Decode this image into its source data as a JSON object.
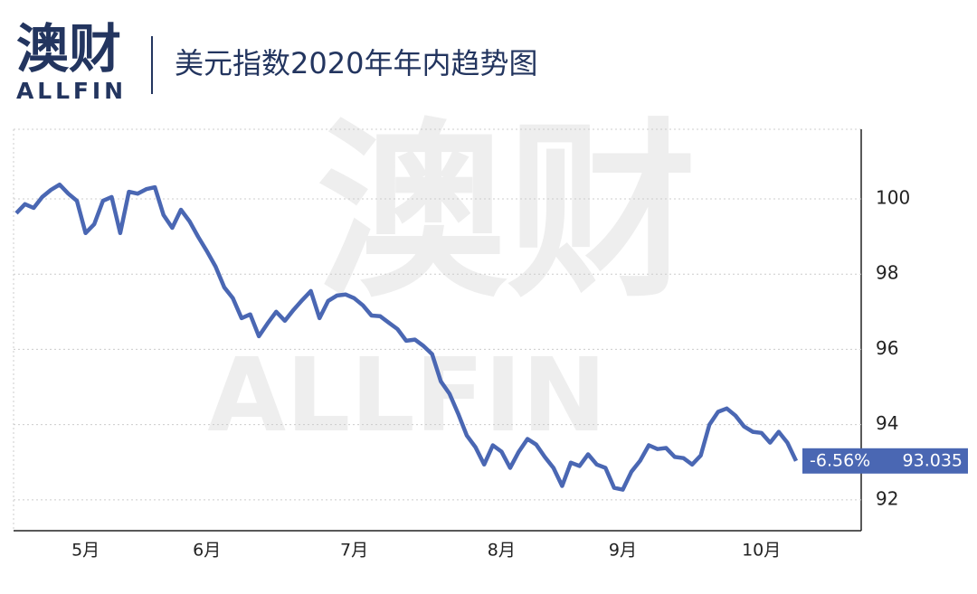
{
  "brand": {
    "name": "澳财",
    "name_en": "ALLFIN"
  },
  "chart_data": {
    "type": "line",
    "title": "美元指数2020年年内趋势图",
    "categories": [
      null,
      null,
      null,
      null,
      null,
      null,
      null,
      null,
      "5月",
      null,
      null,
      null,
      null,
      null,
      null,
      null,
      null,
      null,
      null,
      null,
      null,
      null,
      "6月",
      null,
      null,
      null,
      null,
      null,
      null,
      null,
      null,
      null,
      null,
      null,
      null,
      null,
      null,
      null,
      null,
      "7月",
      null,
      null,
      null,
      null,
      null,
      null,
      null,
      null,
      null,
      null,
      null,
      null,
      null,
      null,
      null,
      null,
      "8月",
      null,
      null,
      null,
      null,
      null,
      null,
      null,
      null,
      null,
      null,
      null,
      null,
      null,
      "9月",
      null,
      null,
      null,
      null,
      null,
      null,
      null,
      null,
      null,
      null,
      null,
      null,
      null,
      null,
      null,
      "10月",
      null,
      null,
      null,
      null
    ],
    "series": [
      {
        "color": "#4a67b3",
        "values": [
          99.62,
          99.86,
          99.76,
          100.05,
          100.24,
          100.38,
          100.14,
          99.95,
          99.09,
          99.33,
          99.95,
          100.05,
          99.09,
          100.19,
          100.14,
          100.26,
          100.31,
          99.57,
          99.23,
          99.71,
          99.4,
          98.99,
          98.61,
          98.2,
          97.65,
          97.36,
          96.83,
          96.93,
          96.35,
          96.69,
          97.0,
          96.76,
          97.05,
          97.31,
          97.55,
          96.83,
          97.29,
          97.43,
          97.46,
          97.36,
          97.17,
          96.9,
          96.88,
          96.71,
          96.54,
          96.23,
          96.26,
          96.09,
          95.87,
          95.15,
          94.82,
          94.29,
          93.71,
          93.4,
          92.94,
          93.45,
          93.28,
          92.85,
          93.28,
          93.62,
          93.47,
          93.14,
          92.85,
          92.37,
          92.99,
          92.9,
          93.21,
          92.94,
          92.85,
          92.32,
          92.27,
          92.75,
          93.04,
          93.45,
          93.35,
          93.38,
          93.14,
          93.11,
          92.94,
          93.18,
          94.0,
          94.34,
          94.43,
          94.24,
          93.95,
          93.81,
          93.78,
          93.52,
          93.81,
          93.52,
          93.035
        ]
      }
    ],
    "annotation": "-6.56%",
    "ylim": [
      91.18,
      101.85
    ],
    "yticks": [
      92,
      94,
      96,
      98,
      100
    ],
    "y_axis_side": "right",
    "grid": true
  }
}
